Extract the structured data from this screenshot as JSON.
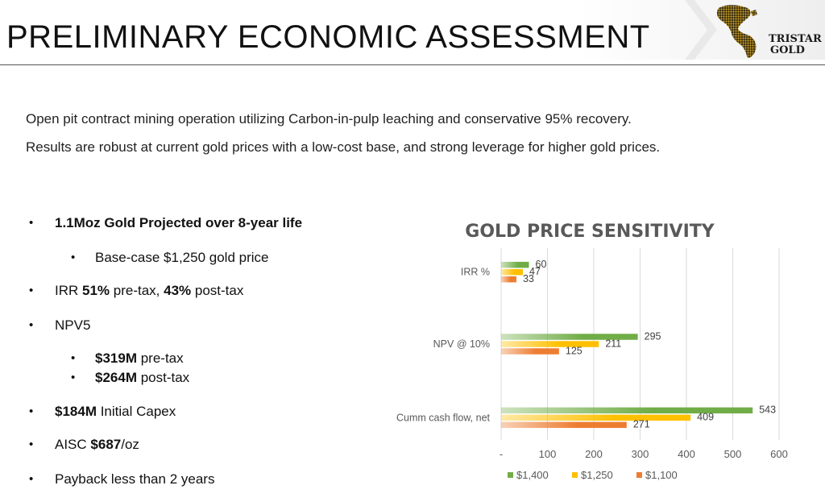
{
  "header": {
    "title": "PRELIMINARY ECONOMIC ASSESSMENT",
    "logo_line1": "TRISTAR",
    "logo_line2": "GOLD"
  },
  "intro": {
    "line1": "Open pit contract mining operation utilizing Carbon-in-pulp leaching and conservative 95% recovery.",
    "line2": "Results are robust at current gold prices with a low-cost base, and strong leverage for higher gold prices."
  },
  "bullets": {
    "item1": "1.1Moz Gold Projected over 8-year life",
    "item1_sub": "Base-case $1,250 gold price",
    "item2_pre": "IRR ",
    "item2_b1": "51%",
    "item2_mid": " pre-tax, ",
    "item2_b2": "43%",
    "item2_post": " post-tax",
    "item3": "NPV5",
    "item3_sub1_b": "$319M",
    "item3_sub1": " pre-tax",
    "item3_sub2_b": "$264M",
    "item3_sub2": " post-tax",
    "item4_b": "$184M",
    "item4": " Initial Capex",
    "item5_pre": "AISC ",
    "item5_b": "$687",
    "item5_post": "/oz",
    "item6": "Payback less than 2 years",
    "bullet_glyph": "•"
  },
  "chart_data": {
    "type": "bar",
    "orientation": "horizontal",
    "title": "GOLD PRICE SENSITIVITY",
    "categories": [
      "IRR %",
      "NPV @ 10%",
      "Cumm cash flow, net"
    ],
    "series": [
      {
        "name": "$1,400",
        "color": "#70ad47",
        "values": [
          60,
          295,
          543
        ]
      },
      {
        "name": "$1,250",
        "color": "#ffc000",
        "values": [
          47,
          211,
          409
        ]
      },
      {
        "name": "$1,100",
        "color": "#ed7d31",
        "values": [
          33,
          125,
          271
        ]
      }
    ],
    "xlim": [
      0,
      600
    ],
    "x_ticks": [
      "-",
      "100",
      "200",
      "300",
      "400",
      "500",
      "600"
    ],
    "grid": true,
    "legend": "bottom",
    "xlabel": "",
    "ylabel": ""
  }
}
